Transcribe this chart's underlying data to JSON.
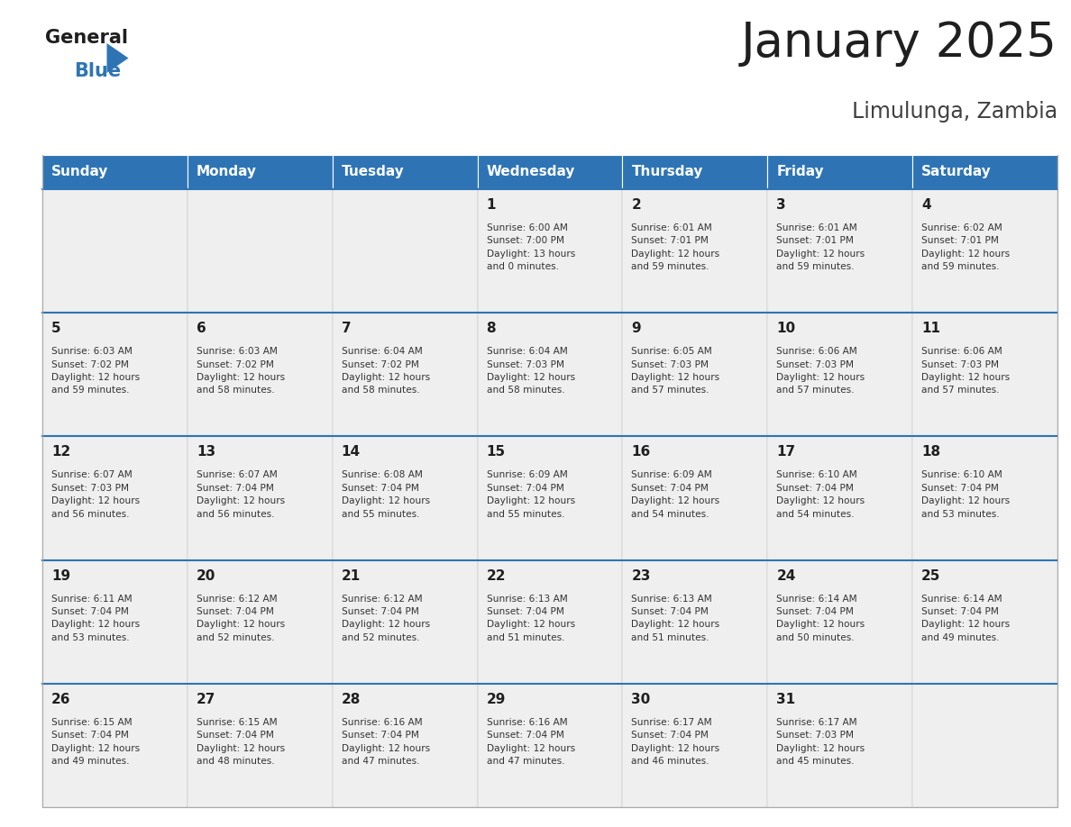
{
  "title": "January 2025",
  "subtitle": "Limulunga, Zambia",
  "header_bg": "#2E74B5",
  "header_text_color": "#FFFFFF",
  "cell_bg": "#EFEFEF",
  "empty_cell_bg": "#EFEFEF",
  "cell_border_color": "#AAAAAA",
  "days_of_week": [
    "Sunday",
    "Monday",
    "Tuesday",
    "Wednesday",
    "Thursday",
    "Friday",
    "Saturday"
  ],
  "title_color": "#1F1F1F",
  "subtitle_color": "#404040",
  "day_num_color": "#1F1F1F",
  "info_color": "#333333",
  "accent_line_color": "#2E74B5",
  "logo_general_color": "#1F1F1F",
  "logo_blue_color": "#2E74B5",
  "logo_triangle_color": "#2E74B5",
  "calendar": [
    [
      {
        "day": "",
        "info": ""
      },
      {
        "day": "",
        "info": ""
      },
      {
        "day": "",
        "info": ""
      },
      {
        "day": "1",
        "info": "Sunrise: 6:00 AM\nSunset: 7:00 PM\nDaylight: 13 hours\nand 0 minutes."
      },
      {
        "day": "2",
        "info": "Sunrise: 6:01 AM\nSunset: 7:01 PM\nDaylight: 12 hours\nand 59 minutes."
      },
      {
        "day": "3",
        "info": "Sunrise: 6:01 AM\nSunset: 7:01 PM\nDaylight: 12 hours\nand 59 minutes."
      },
      {
        "day": "4",
        "info": "Sunrise: 6:02 AM\nSunset: 7:01 PM\nDaylight: 12 hours\nand 59 minutes."
      }
    ],
    [
      {
        "day": "5",
        "info": "Sunrise: 6:03 AM\nSunset: 7:02 PM\nDaylight: 12 hours\nand 59 minutes."
      },
      {
        "day": "6",
        "info": "Sunrise: 6:03 AM\nSunset: 7:02 PM\nDaylight: 12 hours\nand 58 minutes."
      },
      {
        "day": "7",
        "info": "Sunrise: 6:04 AM\nSunset: 7:02 PM\nDaylight: 12 hours\nand 58 minutes."
      },
      {
        "day": "8",
        "info": "Sunrise: 6:04 AM\nSunset: 7:03 PM\nDaylight: 12 hours\nand 58 minutes."
      },
      {
        "day": "9",
        "info": "Sunrise: 6:05 AM\nSunset: 7:03 PM\nDaylight: 12 hours\nand 57 minutes."
      },
      {
        "day": "10",
        "info": "Sunrise: 6:06 AM\nSunset: 7:03 PM\nDaylight: 12 hours\nand 57 minutes."
      },
      {
        "day": "11",
        "info": "Sunrise: 6:06 AM\nSunset: 7:03 PM\nDaylight: 12 hours\nand 57 minutes."
      }
    ],
    [
      {
        "day": "12",
        "info": "Sunrise: 6:07 AM\nSunset: 7:03 PM\nDaylight: 12 hours\nand 56 minutes."
      },
      {
        "day": "13",
        "info": "Sunrise: 6:07 AM\nSunset: 7:04 PM\nDaylight: 12 hours\nand 56 minutes."
      },
      {
        "day": "14",
        "info": "Sunrise: 6:08 AM\nSunset: 7:04 PM\nDaylight: 12 hours\nand 55 minutes."
      },
      {
        "day": "15",
        "info": "Sunrise: 6:09 AM\nSunset: 7:04 PM\nDaylight: 12 hours\nand 55 minutes."
      },
      {
        "day": "16",
        "info": "Sunrise: 6:09 AM\nSunset: 7:04 PM\nDaylight: 12 hours\nand 54 minutes."
      },
      {
        "day": "17",
        "info": "Sunrise: 6:10 AM\nSunset: 7:04 PM\nDaylight: 12 hours\nand 54 minutes."
      },
      {
        "day": "18",
        "info": "Sunrise: 6:10 AM\nSunset: 7:04 PM\nDaylight: 12 hours\nand 53 minutes."
      }
    ],
    [
      {
        "day": "19",
        "info": "Sunrise: 6:11 AM\nSunset: 7:04 PM\nDaylight: 12 hours\nand 53 minutes."
      },
      {
        "day": "20",
        "info": "Sunrise: 6:12 AM\nSunset: 7:04 PM\nDaylight: 12 hours\nand 52 minutes."
      },
      {
        "day": "21",
        "info": "Sunrise: 6:12 AM\nSunset: 7:04 PM\nDaylight: 12 hours\nand 52 minutes."
      },
      {
        "day": "22",
        "info": "Sunrise: 6:13 AM\nSunset: 7:04 PM\nDaylight: 12 hours\nand 51 minutes."
      },
      {
        "day": "23",
        "info": "Sunrise: 6:13 AM\nSunset: 7:04 PM\nDaylight: 12 hours\nand 51 minutes."
      },
      {
        "day": "24",
        "info": "Sunrise: 6:14 AM\nSunset: 7:04 PM\nDaylight: 12 hours\nand 50 minutes."
      },
      {
        "day": "25",
        "info": "Sunrise: 6:14 AM\nSunset: 7:04 PM\nDaylight: 12 hours\nand 49 minutes."
      }
    ],
    [
      {
        "day": "26",
        "info": "Sunrise: 6:15 AM\nSunset: 7:04 PM\nDaylight: 12 hours\nand 49 minutes."
      },
      {
        "day": "27",
        "info": "Sunrise: 6:15 AM\nSunset: 7:04 PM\nDaylight: 12 hours\nand 48 minutes."
      },
      {
        "day": "28",
        "info": "Sunrise: 6:16 AM\nSunset: 7:04 PM\nDaylight: 12 hours\nand 47 minutes."
      },
      {
        "day": "29",
        "info": "Sunrise: 6:16 AM\nSunset: 7:04 PM\nDaylight: 12 hours\nand 47 minutes."
      },
      {
        "day": "30",
        "info": "Sunrise: 6:17 AM\nSunset: 7:04 PM\nDaylight: 12 hours\nand 46 minutes."
      },
      {
        "day": "31",
        "info": "Sunrise: 6:17 AM\nSunset: 7:03 PM\nDaylight: 12 hours\nand 45 minutes."
      },
      {
        "day": "",
        "info": ""
      }
    ]
  ]
}
